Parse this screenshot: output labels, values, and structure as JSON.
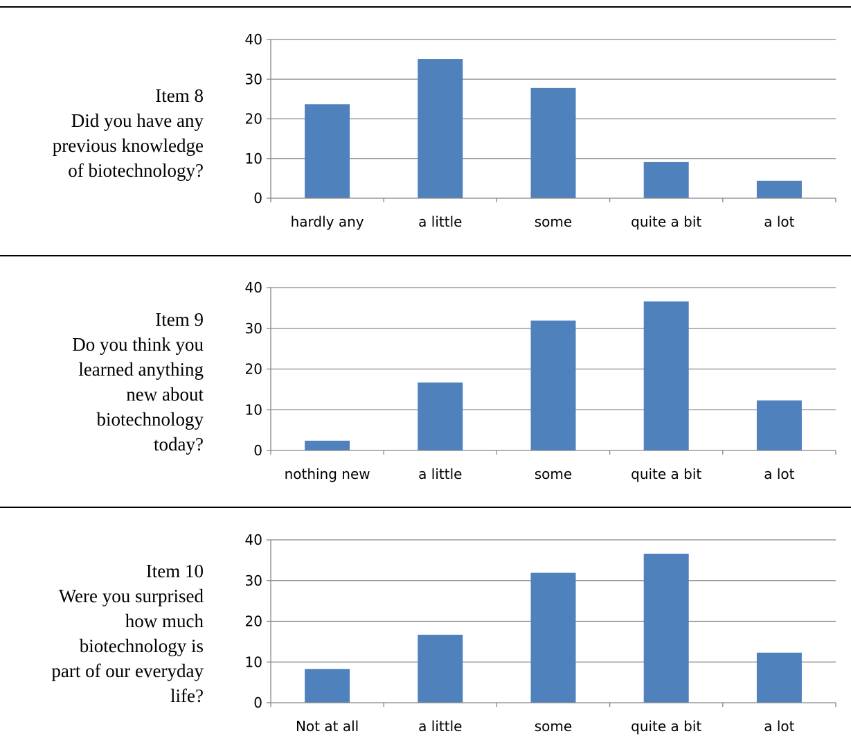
{
  "items": [
    {
      "lines": [
        "Item 8",
        "Did you have any",
        "previous knowledge",
        "of biotechnology?"
      ]
    },
    {
      "lines": [
        "Item 9",
        "Do you think you",
        "learned anything",
        "new about",
        "biotechnology",
        "today?"
      ]
    },
    {
      "lines": [
        "Item 10",
        "Were you surprised",
        "how much",
        "biotechnology is",
        "part of our everyday",
        "life?"
      ]
    }
  ],
  "colors": {
    "bar": "#4f81bd",
    "grid": "#868686",
    "rule": "#000000"
  },
  "chart_data": [
    {
      "type": "bar",
      "categories": [
        "hardly any",
        "a little",
        "some",
        "quite a bit",
        "a lot"
      ],
      "values": [
        23.7,
        35.1,
        27.8,
        9.1,
        4.4
      ],
      "ylim": [
        0,
        40
      ],
      "yticks": [
        "0",
        "10",
        "20",
        "30",
        "40"
      ],
      "grid": true
    },
    {
      "type": "bar",
      "categories": [
        "nothing new",
        "a little",
        "some",
        "quite a bit",
        "a lot"
      ],
      "values": [
        2.4,
        16.7,
        31.9,
        36.6,
        12.3
      ],
      "ylim": [
        0,
        40
      ],
      "yticks": [
        "0",
        "10",
        "20",
        "30",
        "40"
      ],
      "grid": true
    },
    {
      "type": "bar",
      "categories": [
        "Not at all",
        "a little",
        "some",
        "quite a bit",
        "a lot"
      ],
      "values": [
        8.3,
        16.7,
        31.9,
        36.6,
        12.3
      ],
      "ylim": [
        0,
        40
      ],
      "yticks": [
        "0",
        "10",
        "20",
        "30",
        "40"
      ],
      "grid": true
    }
  ]
}
